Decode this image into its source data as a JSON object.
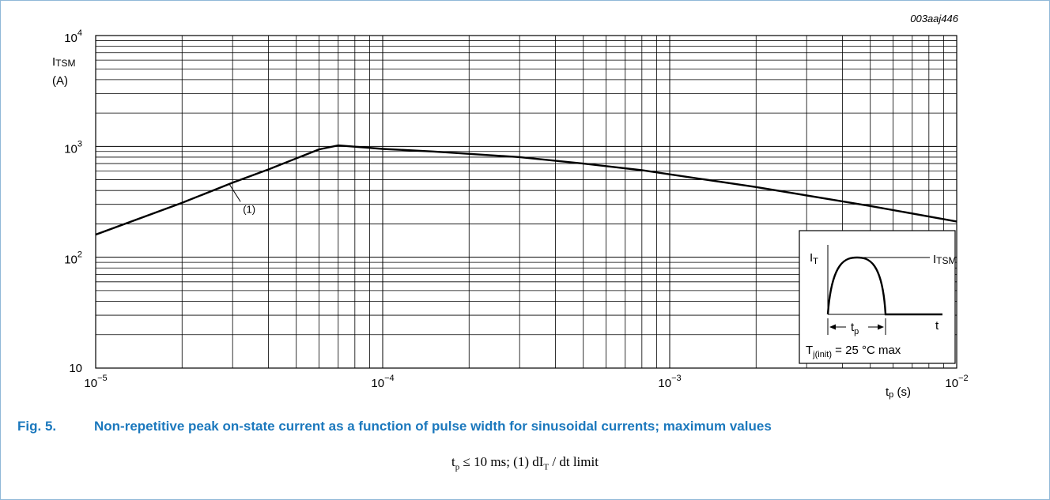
{
  "figure_id": "003aaj446",
  "caption": {
    "number": "Fig. 5.",
    "text": "Non-repetitive peak on-state current as a function of pulse width for sinusoidal currents; maximum values"
  },
  "note": {
    "t": "t",
    "t_sub": "p",
    "le": "≤",
    "value": "10 ms; (1) dI",
    "di_sub": "T",
    "tail": "/ dt limit"
  },
  "chart_data": {
    "type": "line",
    "x_scale": "log",
    "y_scale": "log",
    "xlim": [
      1e-05,
      0.01
    ],
    "ylim": [
      10,
      10000
    ],
    "grid": true,
    "xlabel": {
      "main": "t",
      "sub": "p",
      "unit": " (s)"
    },
    "ylabel": {
      "main": "I",
      "sub": "TSM",
      "unit": "(A)"
    },
    "x_ticks": [
      {
        "base": "10",
        "exp": "−5"
      },
      {
        "base": "10",
        "exp": "−4"
      },
      {
        "base": "10",
        "exp": "−3"
      },
      {
        "base": "10",
        "exp": "−2"
      }
    ],
    "y_ticks": [
      {
        "base": "10",
        "exp": ""
      },
      {
        "base": "10",
        "exp": "2"
      },
      {
        "base": "10",
        "exp": "3"
      },
      {
        "base": "10",
        "exp": "4"
      }
    ],
    "series": [
      {
        "x": [
          1e-05,
          2e-05,
          3e-05,
          4e-05,
          6e-05,
          7e-05,
          0.0001,
          0.00015,
          0.0003,
          0.0005,
          0.0008,
          0.001,
          0.002,
          0.005,
          0.01
        ],
        "y": [
          160,
          310,
          470,
          620,
          940,
          1020,
          950,
          900,
          800,
          700,
          610,
          560,
          430,
          290,
          210
        ]
      }
    ],
    "annotations": [
      {
        "text": "(1)",
        "x": 3e-05,
        "y": 470
      }
    ],
    "inset": {
      "it_label": {
        "main": "I",
        "sub": "T"
      },
      "itsm_label": {
        "main": "I",
        "sub": "TSM"
      },
      "t_label": "t",
      "tp_label": {
        "main": "t",
        "sub": "p"
      },
      "tj_label": {
        "main": "T",
        "sub": "j(init)",
        "tail": " = 25 °C max"
      }
    }
  }
}
